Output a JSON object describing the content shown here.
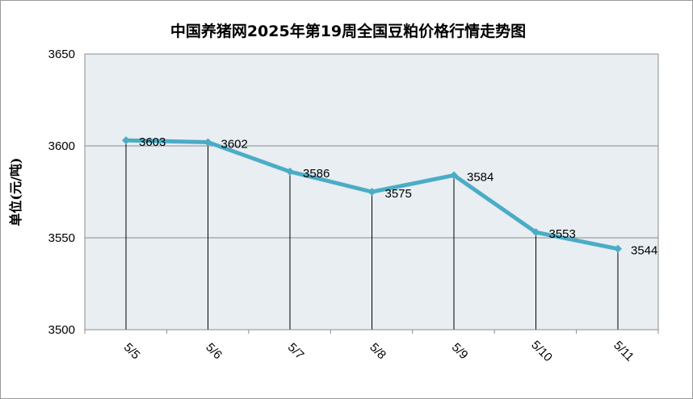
{
  "chart_data": {
    "type": "line",
    "title": "中国养猪网2025年第19周全国豆粕价格行情走势图",
    "ylabel": "单位(元/吨)",
    "xlabel": "",
    "categories": [
      "5/5",
      "5/6",
      "5/7",
      "5/8",
      "5/9",
      "5/10",
      "5/11"
    ],
    "values": [
      3603,
      3602,
      3586,
      3575,
      3584,
      3553,
      3544
    ],
    "ylim": [
      3500,
      3650
    ],
    "yticks": [
      3500,
      3550,
      3600,
      3650
    ],
    "grid": true,
    "legend": "none",
    "colors": {
      "line": "#4bacc6",
      "plot_background": "#e8eef2",
      "gridline": "#8c8c8c",
      "drop_line": "#000000"
    }
  }
}
